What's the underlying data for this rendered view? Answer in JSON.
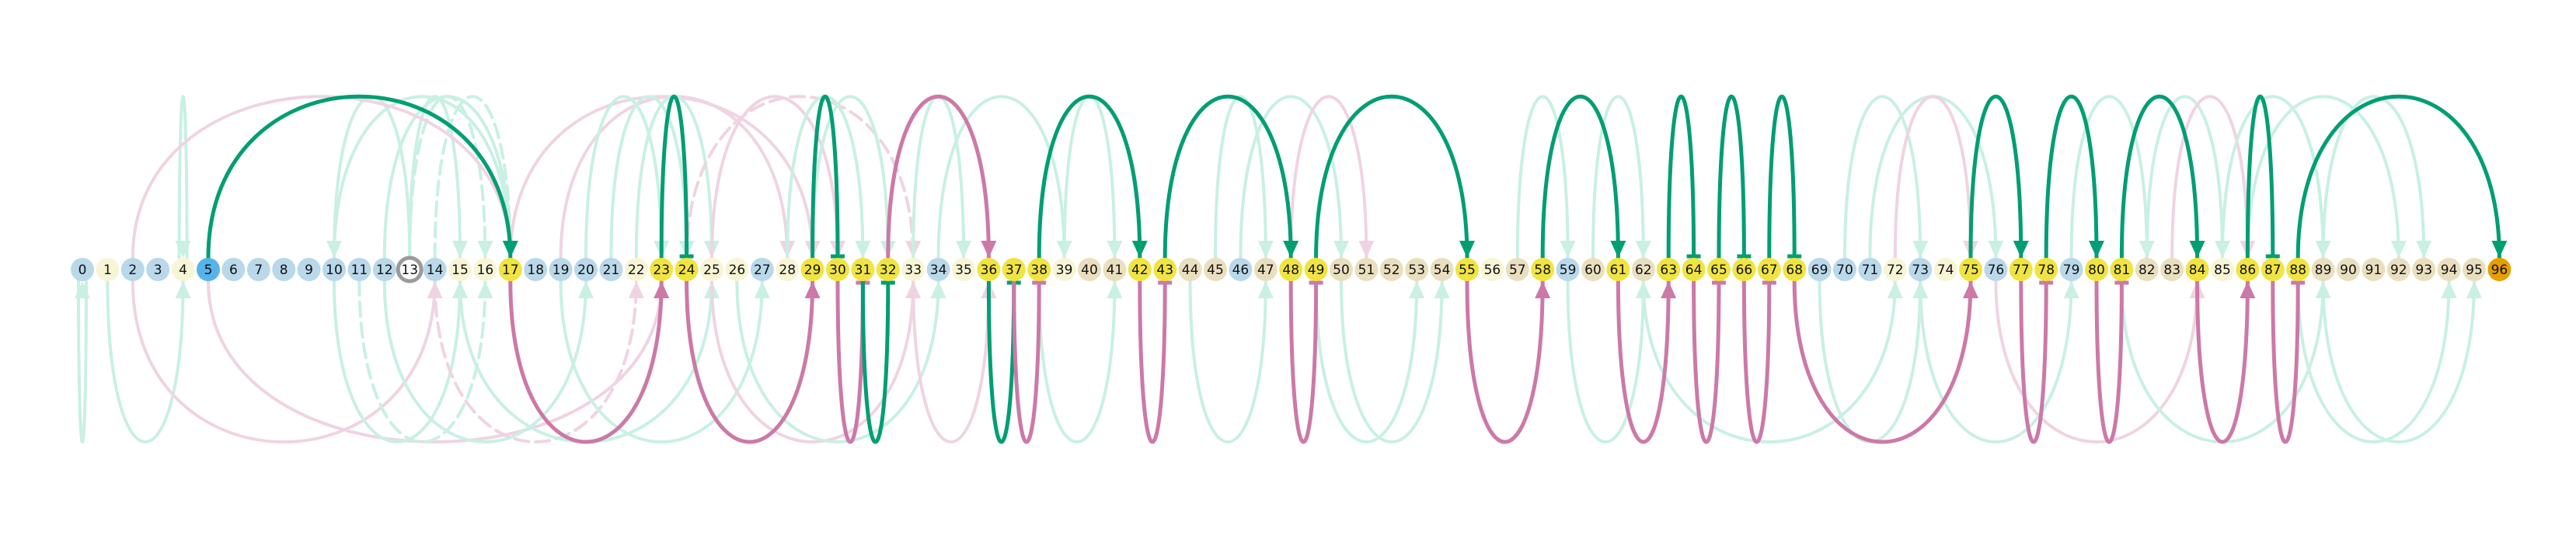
{
  "colors": {
    "node_blue": "#b9d8ea",
    "node_cream": "#f8f5d6",
    "node_beige": "#e9dfbf",
    "node_yellow": "#f0e442",
    "node_source": "#56b4e9",
    "node_target": "#e69f00",
    "node_ring": "#9a9a9a",
    "green": "#009e73",
    "pink": "#cc79a7",
    "green_faint": "#c8f0e3",
    "pink_faint": "#f0d3e2"
  },
  "nodes": [
    {
      "label": "0",
      "style": "blue"
    },
    {
      "label": "1",
      "style": "cream"
    },
    {
      "label": "2",
      "style": "blue"
    },
    {
      "label": "3",
      "style": "blue"
    },
    {
      "label": "4",
      "style": "cream"
    },
    {
      "label": "5",
      "style": "source"
    },
    {
      "label": "6",
      "style": "blue"
    },
    {
      "label": "7",
      "style": "blue"
    },
    {
      "label": "8",
      "style": "blue"
    },
    {
      "label": "9",
      "style": "blue"
    },
    {
      "label": "10",
      "style": "blue"
    },
    {
      "label": "11",
      "style": "blue"
    },
    {
      "label": "12",
      "style": "blue"
    },
    {
      "label": "13",
      "style": "ring"
    },
    {
      "label": "14",
      "style": "blue"
    },
    {
      "label": "15",
      "style": "cream"
    },
    {
      "label": "16",
      "style": "cream"
    },
    {
      "label": "17",
      "style": "yellow"
    },
    {
      "label": "18",
      "style": "blue"
    },
    {
      "label": "19",
      "style": "blue"
    },
    {
      "label": "20",
      "style": "blue"
    },
    {
      "label": "21",
      "style": "blue"
    },
    {
      "label": "22",
      "style": "cream"
    },
    {
      "label": "23",
      "style": "yellow"
    },
    {
      "label": "24",
      "style": "yellow"
    },
    {
      "label": "25",
      "style": "cream"
    },
    {
      "label": "26",
      "style": "cream"
    },
    {
      "label": "27",
      "style": "blue"
    },
    {
      "label": "28",
      "style": "cream"
    },
    {
      "label": "29",
      "style": "yellow"
    },
    {
      "label": "30",
      "style": "yellow"
    },
    {
      "label": "31",
      "style": "yellow"
    },
    {
      "label": "32",
      "style": "yellow"
    },
    {
      "label": "33",
      "style": "cream"
    },
    {
      "label": "34",
      "style": "blue"
    },
    {
      "label": "35",
      "style": "cream"
    },
    {
      "label": "36",
      "style": "yellow"
    },
    {
      "label": "37",
      "style": "yellow"
    },
    {
      "label": "38",
      "style": "yellow"
    },
    {
      "label": "39",
      "style": "cream"
    },
    {
      "label": "40",
      "style": "beige"
    },
    {
      "label": "41",
      "style": "beige"
    },
    {
      "label": "42",
      "style": "yellow"
    },
    {
      "label": "43",
      "style": "yellow"
    },
    {
      "label": "44",
      "style": "beige"
    },
    {
      "label": "45",
      "style": "beige"
    },
    {
      "label": "46",
      "style": "blue"
    },
    {
      "label": "47",
      "style": "beige"
    },
    {
      "label": "48",
      "style": "yellow"
    },
    {
      "label": "49",
      "style": "yellow"
    },
    {
      "label": "50",
      "style": "beige"
    },
    {
      "label": "51",
      "style": "beige"
    },
    {
      "label": "52",
      "style": "beige"
    },
    {
      "label": "53",
      "style": "beige"
    },
    {
      "label": "54",
      "style": "beige"
    },
    {
      "label": "55",
      "style": "yellow"
    },
    {
      "label": "56",
      "style": "cream"
    },
    {
      "label": "57",
      "style": "beige"
    },
    {
      "label": "58",
      "style": "yellow"
    },
    {
      "label": "59",
      "style": "blue"
    },
    {
      "label": "60",
      "style": "beige"
    },
    {
      "label": "61",
      "style": "yellow"
    },
    {
      "label": "62",
      "style": "beige"
    },
    {
      "label": "63",
      "style": "yellow"
    },
    {
      "label": "64",
      "style": "yellow"
    },
    {
      "label": "65",
      "style": "yellow"
    },
    {
      "label": "66",
      "style": "yellow"
    },
    {
      "label": "67",
      "style": "yellow"
    },
    {
      "label": "68",
      "style": "yellow"
    },
    {
      "label": "69",
      "style": "blue"
    },
    {
      "label": "70",
      "style": "blue"
    },
    {
      "label": "71",
      "style": "blue"
    },
    {
      "label": "72",
      "style": "cream"
    },
    {
      "label": "73",
      "style": "blue"
    },
    {
      "label": "74",
      "style": "cream"
    },
    {
      "label": "75",
      "style": "yellow"
    },
    {
      "label": "76",
      "style": "blue"
    },
    {
      "label": "77",
      "style": "yellow"
    },
    {
      "label": "78",
      "style": "yellow"
    },
    {
      "label": "79",
      "style": "blue"
    },
    {
      "label": "80",
      "style": "yellow"
    },
    {
      "label": "81",
      "style": "yellow"
    },
    {
      "label": "82",
      "style": "beige"
    },
    {
      "label": "83",
      "style": "beige"
    },
    {
      "label": "84",
      "style": "yellow"
    },
    {
      "label": "85",
      "style": "cream"
    },
    {
      "label": "86",
      "style": "yellow"
    },
    {
      "label": "87",
      "style": "yellow"
    },
    {
      "label": "88",
      "style": "yellow"
    },
    {
      "label": "89",
      "style": "beige"
    },
    {
      "label": "90",
      "style": "beige"
    },
    {
      "label": "91",
      "style": "beige"
    },
    {
      "label": "92",
      "style": "beige"
    },
    {
      "label": "93",
      "style": "beige"
    },
    {
      "label": "94",
      "style": "beige"
    },
    {
      "label": "95",
      "style": "beige"
    },
    {
      "label": "96",
      "style": "target"
    }
  ],
  "edges_main": [
    {
      "from": 5,
      "to": 17,
      "color": "green",
      "side": "up"
    },
    {
      "from": 17,
      "to": 23,
      "color": "pink",
      "side": "down"
    },
    {
      "from": 23,
      "to": 24,
      "color": "green",
      "side": "up",
      "end": "bar"
    },
    {
      "from": 24,
      "to": 29,
      "color": "pink",
      "side": "down"
    },
    {
      "from": 29,
      "to": 30,
      "color": "green",
      "side": "up",
      "end": "bar"
    },
    {
      "from": 30,
      "to": 31,
      "color": "pink",
      "side": "down",
      "end": "bar"
    },
    {
      "from": 31,
      "to": 32,
      "color": "green",
      "side": "down",
      "end": "bar"
    },
    {
      "from": 32,
      "to": 36,
      "color": "pink",
      "side": "up"
    },
    {
      "from": 36,
      "to": 37,
      "color": "green",
      "side": "down",
      "end": "bar"
    },
    {
      "from": 37,
      "to": 38,
      "color": "pink",
      "side": "down",
      "end": "bar"
    },
    {
      "from": 38,
      "to": 42,
      "color": "green",
      "side": "up"
    },
    {
      "from": 42,
      "to": 43,
      "color": "pink",
      "side": "down",
      "end": "bar"
    },
    {
      "from": 43,
      "to": 48,
      "color": "green",
      "side": "up"
    },
    {
      "from": 48,
      "to": 49,
      "color": "pink",
      "side": "down",
      "end": "bar"
    },
    {
      "from": 49,
      "to": 55,
      "color": "green",
      "side": "up"
    },
    {
      "from": 55,
      "to": 58,
      "color": "pink",
      "side": "down"
    },
    {
      "from": 58,
      "to": 61,
      "color": "green",
      "side": "up"
    },
    {
      "from": 61,
      "to": 63,
      "color": "pink",
      "side": "down"
    },
    {
      "from": 63,
      "to": 64,
      "color": "green",
      "side": "up",
      "end": "bar"
    },
    {
      "from": 64,
      "to": 65,
      "color": "pink",
      "side": "down",
      "end": "bar"
    },
    {
      "from": 65,
      "to": 66,
      "color": "green",
      "side": "up",
      "end": "bar"
    },
    {
      "from": 66,
      "to": 67,
      "color": "pink",
      "side": "down",
      "end": "bar"
    },
    {
      "from": 67,
      "to": 68,
      "color": "green",
      "side": "up",
      "end": "bar"
    },
    {
      "from": 68,
      "to": 75,
      "color": "pink",
      "side": "down"
    },
    {
      "from": 75,
      "to": 77,
      "color": "green",
      "side": "up"
    },
    {
      "from": 77,
      "to": 78,
      "color": "pink",
      "side": "down",
      "end": "bar"
    },
    {
      "from": 78,
      "to": 80,
      "color": "green",
      "side": "up"
    },
    {
      "from": 80,
      "to": 81,
      "color": "pink",
      "side": "down",
      "end": "bar"
    },
    {
      "from": 81,
      "to": 84,
      "color": "green",
      "side": "up"
    },
    {
      "from": 84,
      "to": 86,
      "color": "pink",
      "side": "down"
    },
    {
      "from": 86,
      "to": 87,
      "color": "green",
      "side": "up",
      "end": "bar"
    },
    {
      "from": 87,
      "to": 88,
      "color": "pink",
      "side": "down",
      "end": "bar"
    },
    {
      "from": 88,
      "to": 96,
      "color": "green",
      "side": "up"
    }
  ],
  "edges_faint": [
    {
      "from": 4,
      "to": 4,
      "color": "green",
      "side": "up"
    },
    {
      "from": 13,
      "to": 10,
      "color": "green",
      "side": "up"
    },
    {
      "from": 13,
      "to": 15,
      "color": "green",
      "side": "up"
    },
    {
      "from": 13,
      "to": 16,
      "color": "green",
      "side": "up",
      "dash": true
    },
    {
      "from": 10,
      "to": 17,
      "color": "green",
      "side": "up"
    },
    {
      "from": 12,
      "to": 17,
      "color": "green",
      "side": "up"
    },
    {
      "from": 14,
      "to": 17,
      "color": "green",
      "side": "up",
      "dash": true
    },
    {
      "from": 2,
      "to": 17,
      "color": "pink",
      "side": "up"
    },
    {
      "from": 17,
      "to": 29,
      "color": "pink",
      "side": "up"
    },
    {
      "from": 19,
      "to": 28,
      "color": "pink",
      "side": "up"
    },
    {
      "from": 20,
      "to": 23,
      "color": "green",
      "side": "up"
    },
    {
      "from": 21,
      "to": 24,
      "color": "green",
      "side": "up"
    },
    {
      "from": 22,
      "to": 25,
      "color": "green",
      "side": "up"
    },
    {
      "from": 24,
      "to": 33,
      "color": "pink",
      "side": "up",
      "dash": true
    },
    {
      "from": 25,
      "to": 30,
      "color": "pink",
      "side": "up"
    },
    {
      "from": 28,
      "to": 31,
      "color": "green",
      "side": "up"
    },
    {
      "from": 29,
      "to": 32,
      "color": "green",
      "side": "up"
    },
    {
      "from": 33,
      "to": 35,
      "color": "green",
      "side": "up"
    },
    {
      "from": 34,
      "to": 39,
      "color": "green",
      "side": "up"
    },
    {
      "from": 39,
      "to": 41,
      "color": "green",
      "side": "up"
    },
    {
      "from": 45,
      "to": 47,
      "color": "green",
      "side": "up"
    },
    {
      "from": 46,
      "to": 50,
      "color": "green",
      "side": "up"
    },
    {
      "from": 48,
      "to": 51,
      "color": "pink",
      "side": "up"
    },
    {
      "from": 57,
      "to": 59,
      "color": "green",
      "side": "up"
    },
    {
      "from": 60,
      "to": 62,
      "color": "green",
      "side": "up"
    },
    {
      "from": 70,
      "to": 73,
      "color": "green",
      "side": "up"
    },
    {
      "from": 71,
      "to": 76,
      "color": "green",
      "side": "up"
    },
    {
      "from": 72,
      "to": 75,
      "color": "pink",
      "side": "up"
    },
    {
      "from": 79,
      "to": 82,
      "color": "green",
      "side": "up"
    },
    {
      "from": 82,
      "to": 85,
      "color": "green",
      "side": "up"
    },
    {
      "from": 83,
      "to": 86,
      "color": "pink",
      "side": "up"
    },
    {
      "from": 85,
      "to": 89,
      "color": "green",
      "side": "up"
    },
    {
      "from": 86,
      "to": 92,
      "color": "green",
      "side": "up"
    },
    {
      "from": 89,
      "to": 93,
      "color": "green",
      "side": "up"
    },
    {
      "from": 0,
      "to": 0,
      "color": "green",
      "side": "down"
    },
    {
      "from": 1,
      "to": 4,
      "color": "green",
      "side": "down"
    },
    {
      "from": 2,
      "to": 14,
      "color": "pink",
      "side": "down"
    },
    {
      "from": 5,
      "to": 23,
      "color": "pink",
      "side": "down"
    },
    {
      "from": 10,
      "to": 15,
      "color": "green",
      "side": "down"
    },
    {
      "from": 11,
      "to": 16,
      "color": "green",
      "side": "down",
      "dash": true
    },
    {
      "from": 12,
      "to": 20,
      "color": "green",
      "side": "down"
    },
    {
      "from": 14,
      "to": 22,
      "color": "pink",
      "side": "down",
      "dash": true
    },
    {
      "from": 15,
      "to": 25,
      "color": "green",
      "side": "down"
    },
    {
      "from": 19,
      "to": 27,
      "color": "green",
      "side": "down"
    },
    {
      "from": 25,
      "to": 33,
      "color": "pink",
      "side": "down"
    },
    {
      "from": 26,
      "to": 34,
      "color": "green",
      "side": "down"
    },
    {
      "from": 33,
      "to": 36,
      "color": "pink",
      "side": "down"
    },
    {
      "from": 38,
      "to": 41,
      "color": "green",
      "side": "down"
    },
    {
      "from": 44,
      "to": 47,
      "color": "green",
      "side": "down"
    },
    {
      "from": 49,
      "to": 53,
      "color": "green",
      "side": "down"
    },
    {
      "from": 50,
      "to": 54,
      "color": "green",
      "side": "down"
    },
    {
      "from": 59,
      "to": 62,
      "color": "green",
      "side": "down"
    },
    {
      "from": 62,
      "to": 72,
      "color": "green",
      "side": "down"
    },
    {
      "from": 69,
      "to": 73,
      "color": "green",
      "side": "down"
    },
    {
      "from": 73,
      "to": 79,
      "color": "green",
      "side": "down"
    },
    {
      "from": 76,
      "to": 84,
      "color": "pink",
      "side": "down"
    },
    {
      "from": 81,
      "to": 89,
      "color": "green",
      "side": "down"
    },
    {
      "from": 88,
      "to": 94,
      "color": "green",
      "side": "down"
    },
    {
      "from": 89,
      "to": 95,
      "color": "green",
      "side": "down"
    }
  ]
}
